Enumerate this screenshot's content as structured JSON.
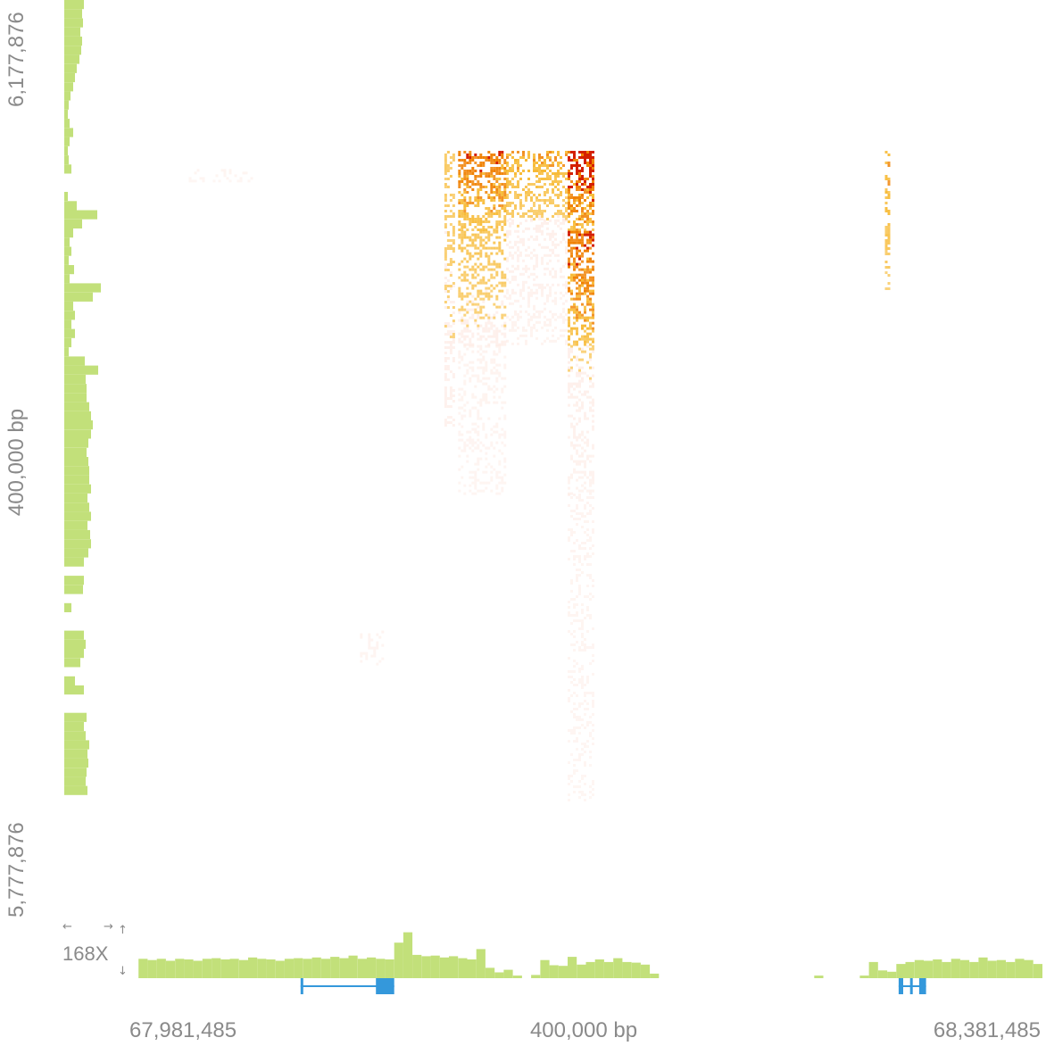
{
  "chart_data": {
    "type": "heatmap",
    "description_free": true,
    "x_axis": {
      "start_label": "67,981,485",
      "span_label": "400,000 bp",
      "end_label": "68,381,485",
      "range": [
        67981485,
        68381485
      ]
    },
    "y_axis": {
      "start_label": "5,777,876",
      "span_label": "400,000 bp",
      "end_label": "6,177,876",
      "range": [
        5777876,
        6177876
      ]
    },
    "coverage_scale_label": "168X",
    "coverage_color": "#c2e07a",
    "gene_color": "#3498db",
    "heat_colors": [
      "#fde0d6",
      "#f5a800",
      "#f08000",
      "#d42000"
    ],
    "top_coverage_x": [
      {
        "pos": 67981485,
        "value": 0
      },
      {
        "pos": 67985485,
        "value": 30
      },
      {
        "pos": 67989485,
        "value": 28
      },
      {
        "pos": 67993485,
        "value": 30
      },
      {
        "pos": 67997485,
        "value": 27
      },
      {
        "pos": 68001485,
        "value": 30
      },
      {
        "pos": 68005485,
        "value": 29
      },
      {
        "pos": 68009485,
        "value": 27
      },
      {
        "pos": 68013485,
        "value": 30
      },
      {
        "pos": 68017485,
        "value": 31
      },
      {
        "pos": 68021485,
        "value": 29
      },
      {
        "pos": 68025485,
        "value": 30
      },
      {
        "pos": 68029485,
        "value": 28
      },
      {
        "pos": 68033485,
        "value": 32
      },
      {
        "pos": 68037485,
        "value": 30
      },
      {
        "pos": 68041485,
        "value": 29
      },
      {
        "pos": 68045485,
        "value": 27
      },
      {
        "pos": 68049485,
        "value": 30
      },
      {
        "pos": 68053485,
        "value": 31
      },
      {
        "pos": 68057485,
        "value": 30
      },
      {
        "pos": 68061485,
        "value": 32
      },
      {
        "pos": 68065485,
        "value": 30
      },
      {
        "pos": 68069485,
        "value": 33
      },
      {
        "pos": 68073485,
        "value": 31
      },
      {
        "pos": 68077485,
        "value": 35
      },
      {
        "pos": 68081485,
        "value": 30
      },
      {
        "pos": 68085485,
        "value": 32
      },
      {
        "pos": 68089485,
        "value": 30
      },
      {
        "pos": 68093485,
        "value": 29
      },
      {
        "pos": 68097485,
        "value": 55
      },
      {
        "pos": 68101485,
        "value": 71
      },
      {
        "pos": 68105485,
        "value": 36
      },
      {
        "pos": 68109485,
        "value": 34
      },
      {
        "pos": 68113485,
        "value": 35
      },
      {
        "pos": 68117485,
        "value": 32
      },
      {
        "pos": 68121485,
        "value": 34
      },
      {
        "pos": 68125485,
        "value": 31
      },
      {
        "pos": 68129485,
        "value": 29
      },
      {
        "pos": 68133485,
        "value": 45
      },
      {
        "pos": 68137485,
        "value": 16
      },
      {
        "pos": 68141485,
        "value": 9
      },
      {
        "pos": 68145485,
        "value": 13
      },
      {
        "pos": 68149485,
        "value": 4
      },
      {
        "pos": 68153485,
        "value": 0
      },
      {
        "pos": 68157485,
        "value": 5
      },
      {
        "pos": 68161485,
        "value": 28
      },
      {
        "pos": 68165485,
        "value": 20
      },
      {
        "pos": 68169485,
        "value": 19
      },
      {
        "pos": 68173485,
        "value": 33
      },
      {
        "pos": 68177485,
        "value": 21
      },
      {
        "pos": 68181485,
        "value": 25
      },
      {
        "pos": 68185485,
        "value": 29
      },
      {
        "pos": 68189485,
        "value": 25
      },
      {
        "pos": 68193485,
        "value": 31
      },
      {
        "pos": 68197485,
        "value": 25
      },
      {
        "pos": 68201485,
        "value": 24
      },
      {
        "pos": 68205485,
        "value": 21
      },
      {
        "pos": 68209485,
        "value": 7
      },
      {
        "pos": 68213485,
        "value": 0
      },
      {
        "pos": 68281485,
        "value": 4
      },
      {
        "pos": 68285485,
        "value": 0
      },
      {
        "pos": 68301485,
        "value": 4
      },
      {
        "pos": 68305485,
        "value": 25
      },
      {
        "pos": 68309485,
        "value": 12
      },
      {
        "pos": 68313485,
        "value": 10
      },
      {
        "pos": 68317485,
        "value": 22
      },
      {
        "pos": 68321485,
        "value": 25
      },
      {
        "pos": 68325485,
        "value": 28
      },
      {
        "pos": 68329485,
        "value": 27
      },
      {
        "pos": 68333485,
        "value": 29
      },
      {
        "pos": 68337485,
        "value": 25
      },
      {
        "pos": 68341485,
        "value": 30
      },
      {
        "pos": 68345485,
        "value": 28
      },
      {
        "pos": 68349485,
        "value": 25
      },
      {
        "pos": 68353485,
        "value": 32
      },
      {
        "pos": 68357485,
        "value": 27
      },
      {
        "pos": 68361485,
        "value": 28
      },
      {
        "pos": 68365485,
        "value": 25
      },
      {
        "pos": 68369485,
        "value": 30
      },
      {
        "pos": 68373485,
        "value": 28
      },
      {
        "pos": 68377485,
        "value": 22
      }
    ],
    "left_coverage_y": [
      {
        "pos": 6177876,
        "value": 22
      },
      {
        "pos": 6173876,
        "value": 20
      },
      {
        "pos": 6169876,
        "value": 21
      },
      {
        "pos": 6165876,
        "value": 18
      },
      {
        "pos": 6161876,
        "value": 20
      },
      {
        "pos": 6157876,
        "value": 19
      },
      {
        "pos": 6153876,
        "value": 17
      },
      {
        "pos": 6149876,
        "value": 14
      },
      {
        "pos": 6145876,
        "value": 12
      },
      {
        "pos": 6141876,
        "value": 10
      },
      {
        "pos": 6137876,
        "value": 7
      },
      {
        "pos": 6133876,
        "value": 5
      },
      {
        "pos": 6129876,
        "value": 4
      },
      {
        "pos": 6125876,
        "value": 6
      },
      {
        "pos": 6121876,
        "value": 10
      },
      {
        "pos": 6117876,
        "value": 6
      },
      {
        "pos": 6113876,
        "value": 4
      },
      {
        "pos": 6109876,
        "value": 5
      },
      {
        "pos": 6105876,
        "value": 8
      },
      {
        "pos": 6101876,
        "value": 0
      },
      {
        "pos": 6097876,
        "value": 0
      },
      {
        "pos": 6093876,
        "value": 4
      },
      {
        "pos": 6089876,
        "value": 14
      },
      {
        "pos": 6085876,
        "value": 37
      },
      {
        "pos": 6081876,
        "value": 20
      },
      {
        "pos": 6077876,
        "value": 10
      },
      {
        "pos": 6073876,
        "value": 6
      },
      {
        "pos": 6069876,
        "value": 8
      },
      {
        "pos": 6065876,
        "value": 5
      },
      {
        "pos": 6061876,
        "value": 11
      },
      {
        "pos": 6057876,
        "value": 6
      },
      {
        "pos": 6053876,
        "value": 41
      },
      {
        "pos": 6049876,
        "value": 32
      },
      {
        "pos": 6045876,
        "value": 10
      },
      {
        "pos": 6041876,
        "value": 12
      },
      {
        "pos": 6037876,
        "value": 8
      },
      {
        "pos": 6033876,
        "value": 12
      },
      {
        "pos": 6029876,
        "value": 8
      },
      {
        "pos": 6025876,
        "value": 5
      },
      {
        "pos": 6021876,
        "value": 23
      },
      {
        "pos": 6017876,
        "value": 38
      },
      {
        "pos": 6013876,
        "value": 24
      },
      {
        "pos": 6009876,
        "value": 25
      },
      {
        "pos": 6005876,
        "value": 25
      },
      {
        "pos": 6001876,
        "value": 28
      },
      {
        "pos": 5997876,
        "value": 30
      },
      {
        "pos": 5993876,
        "value": 32
      },
      {
        "pos": 5989876,
        "value": 30
      },
      {
        "pos": 5985876,
        "value": 27
      },
      {
        "pos": 5981876,
        "value": 25
      },
      {
        "pos": 5977876,
        "value": 27
      },
      {
        "pos": 5973876,
        "value": 28
      },
      {
        "pos": 5969876,
        "value": 28
      },
      {
        "pos": 5965876,
        "value": 30
      },
      {
        "pos": 5961876,
        "value": 26
      },
      {
        "pos": 5957876,
        "value": 28
      },
      {
        "pos": 5953876,
        "value": 30
      },
      {
        "pos": 5949876,
        "value": 26
      },
      {
        "pos": 5945876,
        "value": 29
      },
      {
        "pos": 5941876,
        "value": 30
      },
      {
        "pos": 5937876,
        "value": 27
      },
      {
        "pos": 5933876,
        "value": 22
      },
      {
        "pos": 5929876,
        "value": 0
      },
      {
        "pos": 5925876,
        "value": 22
      },
      {
        "pos": 5921876,
        "value": 21
      },
      {
        "pos": 5917876,
        "value": 0
      },
      {
        "pos": 5913876,
        "value": 8
      },
      {
        "pos": 5909876,
        "value": 0
      },
      {
        "pos": 5905876,
        "value": 0
      },
      {
        "pos": 5901876,
        "value": 22
      },
      {
        "pos": 5897876,
        "value": 24
      },
      {
        "pos": 5893876,
        "value": 22
      },
      {
        "pos": 5889876,
        "value": 18
      },
      {
        "pos": 5885876,
        "value": 0
      },
      {
        "pos": 5881876,
        "value": 12
      },
      {
        "pos": 5877876,
        "value": 22
      },
      {
        "pos": 5873876,
        "value": 0
      },
      {
        "pos": 5869876,
        "value": 0
      },
      {
        "pos": 5865876,
        "value": 25
      },
      {
        "pos": 5861876,
        "value": 22
      },
      {
        "pos": 5857876,
        "value": 24
      },
      {
        "pos": 5853876,
        "value": 28
      },
      {
        "pos": 5849876,
        "value": 26
      },
      {
        "pos": 5845876,
        "value": 27
      },
      {
        "pos": 5841876,
        "value": 25
      },
      {
        "pos": 5837876,
        "value": 24
      },
      {
        "pos": 5833876,
        "value": 26
      }
    ],
    "genes": [
      {
        "start": 68056485,
        "end": 68097485,
        "exons": [
          [
            68056485,
            68057485
          ],
          [
            68089485,
            68097485
          ]
        ]
      },
      {
        "start": 68318485,
        "end": 68330485,
        "exons": [
          [
            68318485,
            68320485
          ],
          [
            68323485,
            68324485
          ],
          [
            68327485,
            68330485
          ]
        ]
      }
    ],
    "contact_blocks": [
      {
        "x": [
          68119485,
          68123485
        ],
        "y": [
          6111876,
          5991876
        ],
        "intensity": 0.3
      },
      {
        "x": [
          68125485,
          68145485
        ],
        "y": [
          6111876,
          6076876
        ],
        "intensity": 0.7
      },
      {
        "x": [
          68125485,
          68145485
        ],
        "y": [
          6076876,
          6026876
        ],
        "intensity": 0.35
      },
      {
        "x": [
          68125485,
          68145485
        ],
        "y": [
          6026876,
          5961876
        ],
        "intensity": 0.12
      },
      {
        "x": [
          68146485,
          68172485
        ],
        "y": [
          6111876,
          6081876
        ],
        "intensity": 0.5
      },
      {
        "x": [
          68146485,
          68172485
        ],
        "y": [
          6081876,
          6026876
        ],
        "intensity": 0.2
      },
      {
        "x": [
          68173485,
          68184485
        ],
        "y": [
          6111876,
          6076876
        ],
        "intensity": 0.9
      },
      {
        "x": [
          68173485,
          68184485
        ],
        "y": [
          6076876,
          6026876
        ],
        "intensity": 0.75
      },
      {
        "x": [
          68173485,
          68184485
        ],
        "y": [
          6026876,
          5961876
        ],
        "intensity": 0.22
      },
      {
        "x": [
          68173485,
          68184485
        ],
        "y": [
          5961876,
          5827876
        ],
        "intensity": 0.08
      },
      {
        "x": [
          68312485,
          68314485
        ],
        "y": [
          6111876,
          6051876
        ],
        "intensity": 0.5
      },
      {
        "x": [
          68082485,
          68092485
        ],
        "y": [
          5901876,
          5886876
        ],
        "intensity": 0.1
      },
      {
        "x": [
          68007485,
          68034485
        ],
        "y": [
          6103876,
          6098876
        ],
        "intensity": 0.08
      }
    ]
  }
}
